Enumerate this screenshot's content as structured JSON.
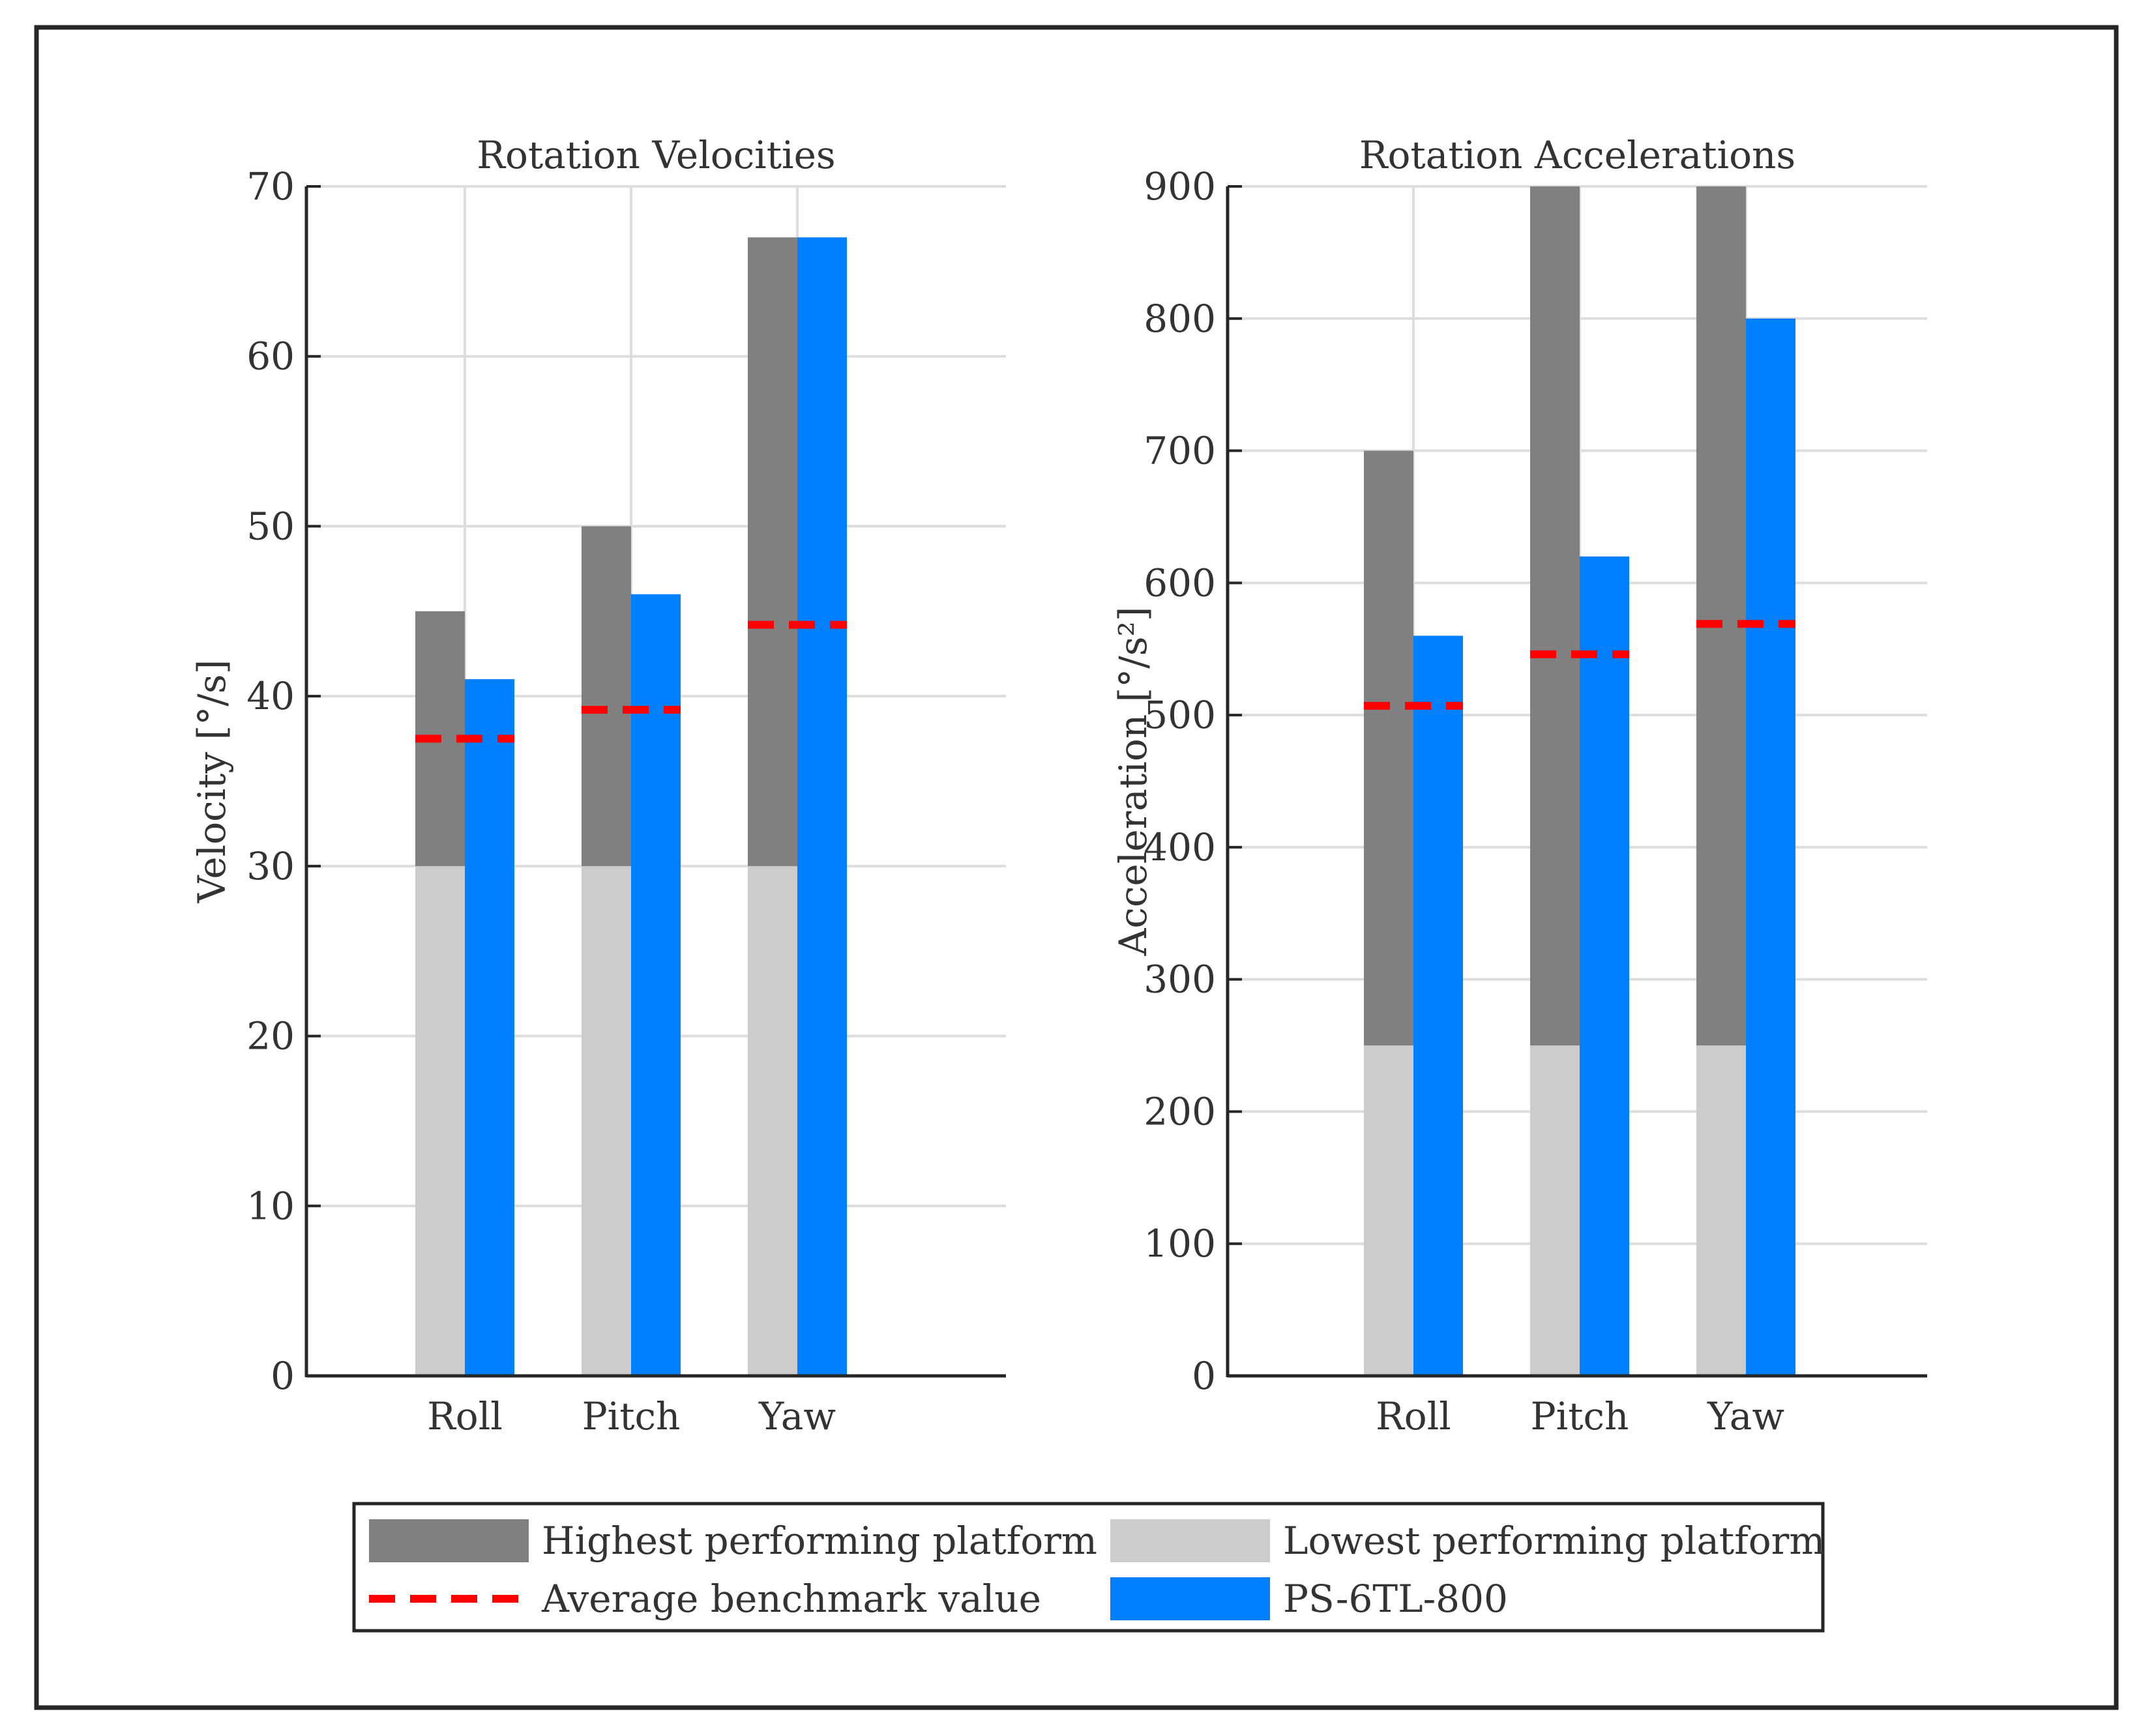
{
  "colors": {
    "highest": "#808080",
    "lowest": "#cccccc",
    "benchmark": "#ff0000",
    "product": "#0080ff",
    "grid": "#dddddd",
    "axis": "#262626",
    "text": "#333333"
  },
  "chart_data": [
    {
      "type": "bar",
      "title": "Rotation Velocities",
      "ylabel": "Velocity [°/s]",
      "xlabel": "",
      "categories": [
        "Roll",
        "Pitch",
        "Yaw"
      ],
      "ylim": [
        0,
        70
      ],
      "yticks": [
        0,
        10,
        20,
        30,
        40,
        50,
        60,
        70
      ],
      "grid": true,
      "series": [
        {
          "name": "Lowest performing platform",
          "values": [
            30,
            30,
            30
          ]
        },
        {
          "name": "Highest performing platform",
          "values": [
            45,
            50,
            67
          ]
        },
        {
          "name": "Average benchmark value",
          "values": [
            37.5,
            39.2,
            44.2
          ]
        },
        {
          "name": "PS-6TL-800",
          "values": [
            41,
            46,
            67
          ]
        }
      ]
    },
    {
      "type": "bar",
      "title": "Rotation Accelerations",
      "ylabel": "Acceleration [°/s²]",
      "xlabel": "",
      "categories": [
        "Roll",
        "Pitch",
        "Yaw"
      ],
      "ylim": [
        0,
        900
      ],
      "yticks": [
        0,
        100,
        200,
        300,
        400,
        500,
        600,
        700,
        800,
        900
      ],
      "grid": true,
      "series": [
        {
          "name": "Lowest performing platform",
          "values": [
            250,
            250,
            250
          ]
        },
        {
          "name": "Highest performing platform",
          "values": [
            700,
            900,
            900
          ]
        },
        {
          "name": "Average benchmark value",
          "values": [
            507,
            546,
            569
          ]
        },
        {
          "name": "PS-6TL-800",
          "values": [
            560,
            620,
            800
          ]
        }
      ]
    }
  ],
  "legend": {
    "placement": "bottom-center",
    "items": [
      {
        "key": "highest",
        "label": "Highest performing platform"
      },
      {
        "key": "lowest",
        "label": "Lowest performing platform"
      },
      {
        "key": "benchmark",
        "label": "Average benchmark value"
      },
      {
        "key": "product",
        "label": "PS-6TL-800"
      }
    ]
  }
}
